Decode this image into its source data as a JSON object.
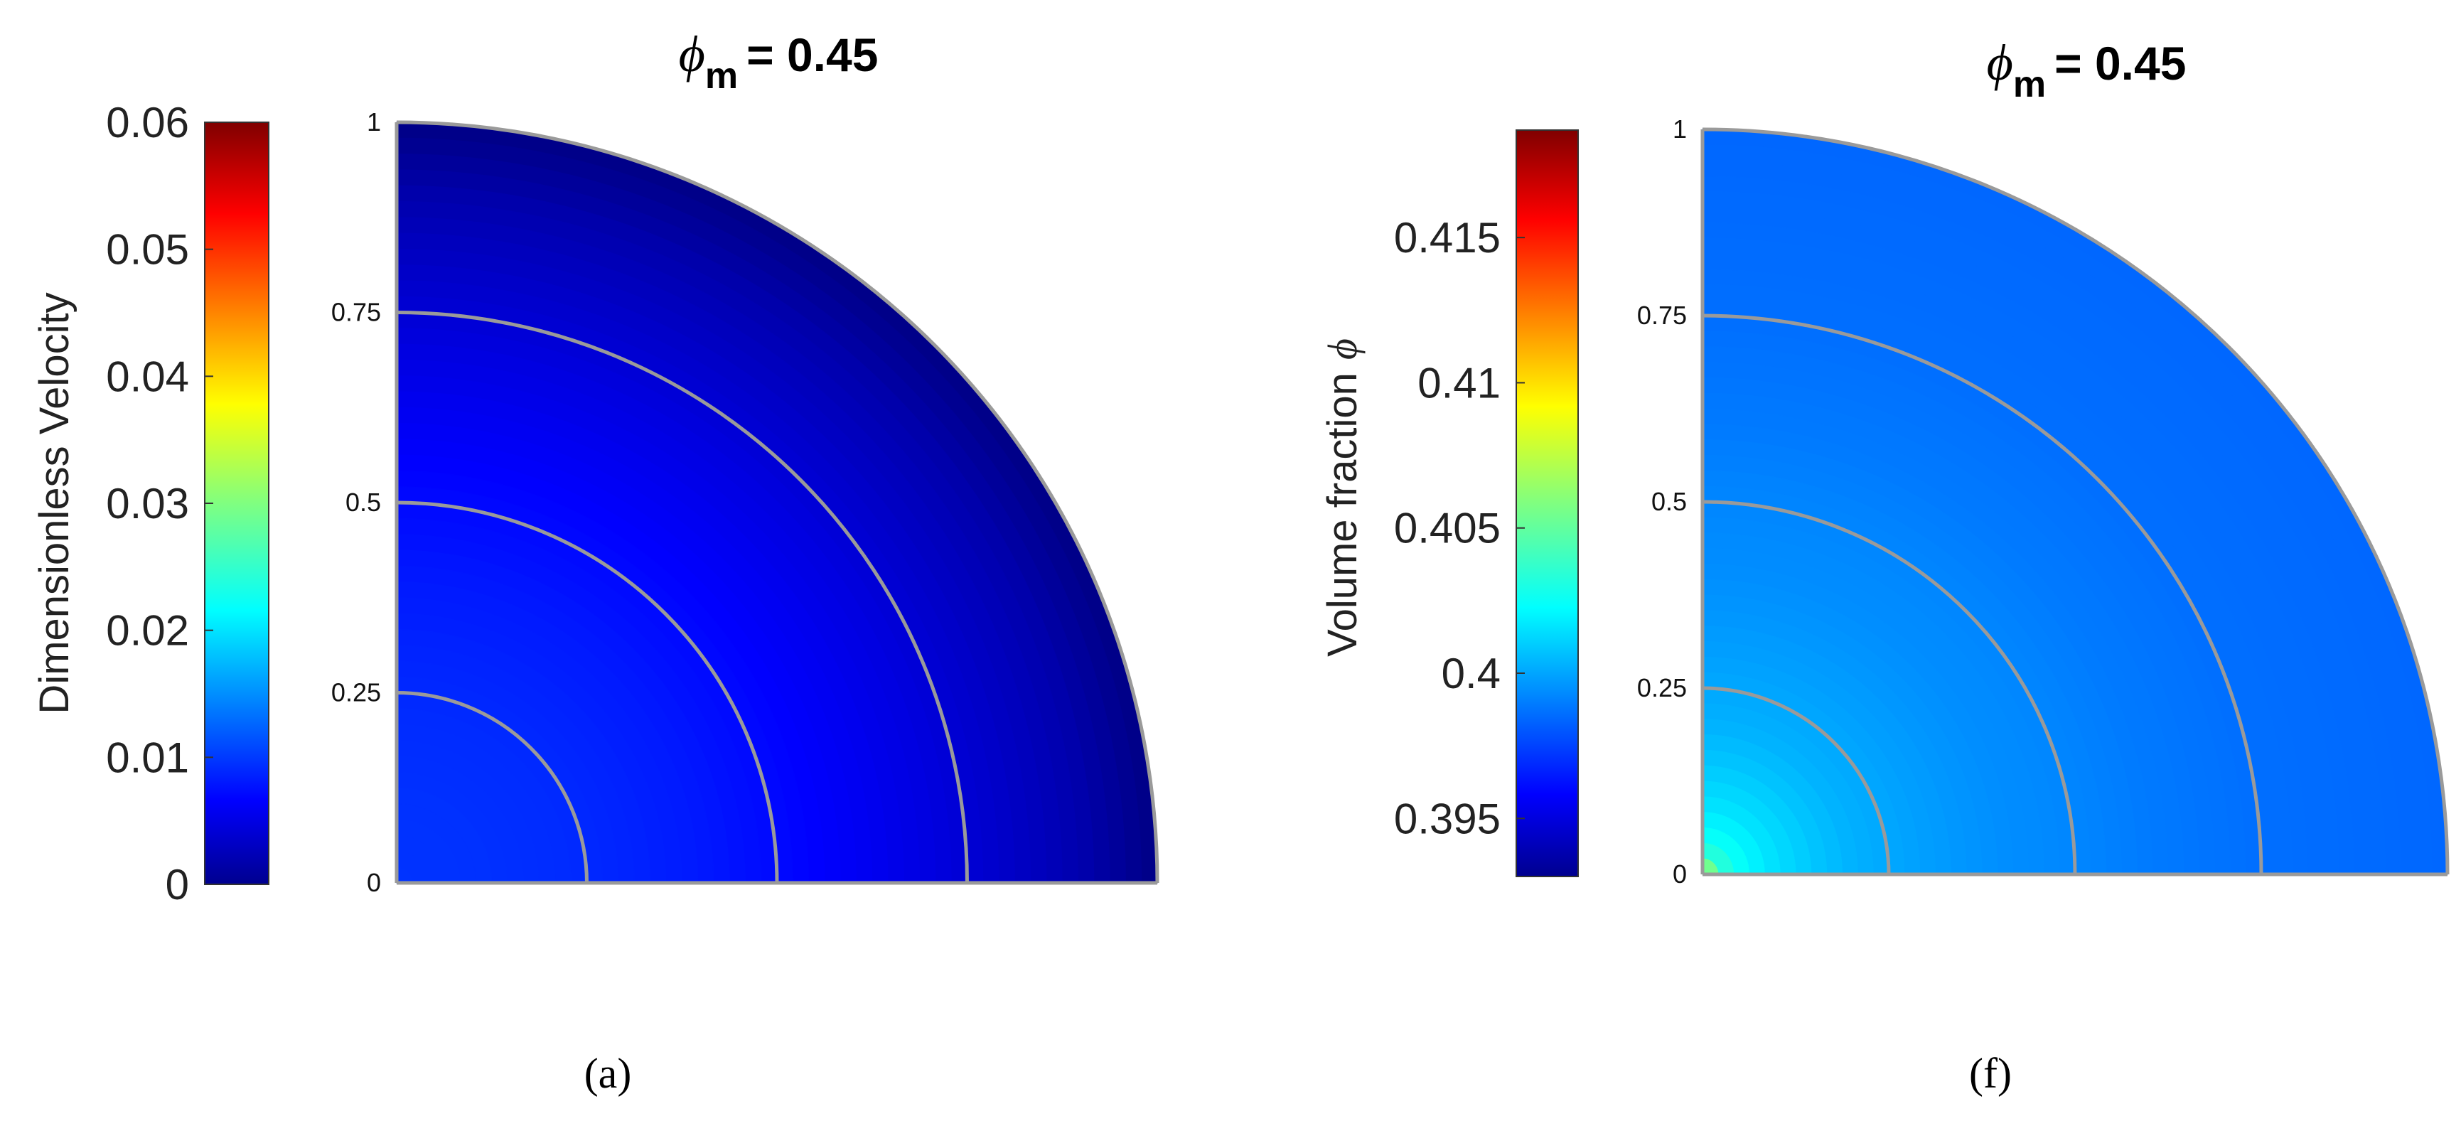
{
  "chart_data": [
    {
      "type": "heatmap",
      "panel_label": "(a)",
      "title_symbol": "ϕ",
      "title_subscript": "m",
      "title_value": "= 0.45",
      "colorbar_label": "Dimensionless Velocity",
      "colorbar_range": [
        0,
        0.06
      ],
      "colorbar_ticks": [
        "0",
        "0.01",
        "0.02",
        "0.03",
        "0.04",
        "0.05",
        "0.06"
      ],
      "colormap": "jet",
      "radial_ticks": [
        "0",
        "0.25",
        "0.5",
        "0.75",
        "1"
      ],
      "radial_gridlines": [
        0.25,
        0.5,
        0.75,
        1.0
      ],
      "grid": true,
      "field": {
        "r": [
          0.0,
          0.1,
          0.2,
          0.3,
          0.4,
          0.5,
          0.6,
          0.7,
          0.8,
          0.9,
          0.95,
          1.0
        ],
        "value": [
          0.0105,
          0.0104,
          0.0101,
          0.0096,
          0.0089,
          0.008,
          0.0069,
          0.0057,
          0.0043,
          0.0027,
          0.0015,
          0.0003
        ]
      }
    },
    {
      "type": "heatmap",
      "panel_label": "(f)",
      "title_symbol": "ϕ",
      "title_subscript": "m",
      "title_value": "= 0.45",
      "colorbar_label_text": "Volume fraction",
      "colorbar_label_symbol": "ϕ",
      "colorbar_range": [
        0.393,
        0.4187
      ],
      "colorbar_ticks": [
        "0.395",
        "0.4",
        "0.405",
        "0.41",
        "0.415"
      ],
      "colorbar_tick_values": [
        0.395,
        0.4,
        0.405,
        0.41,
        0.415
      ],
      "colormap": "jet",
      "radial_ticks": [
        "0",
        "0.25",
        "0.5",
        "0.75",
        "1"
      ],
      "radial_gridlines": [
        0.25,
        0.5,
        0.75,
        1.0
      ],
      "grid": true,
      "field": {
        "r": [
          0.0,
          0.03,
          0.06,
          0.1,
          0.15,
          0.2,
          0.3,
          0.4,
          0.5,
          0.6,
          0.75,
          1.0
        ],
        "value": [
          0.4065,
          0.4035,
          0.4025,
          0.4018,
          0.4012,
          0.4007,
          0.4002,
          0.3998,
          0.3996,
          0.3993,
          0.399,
          0.3988
        ]
      }
    }
  ]
}
